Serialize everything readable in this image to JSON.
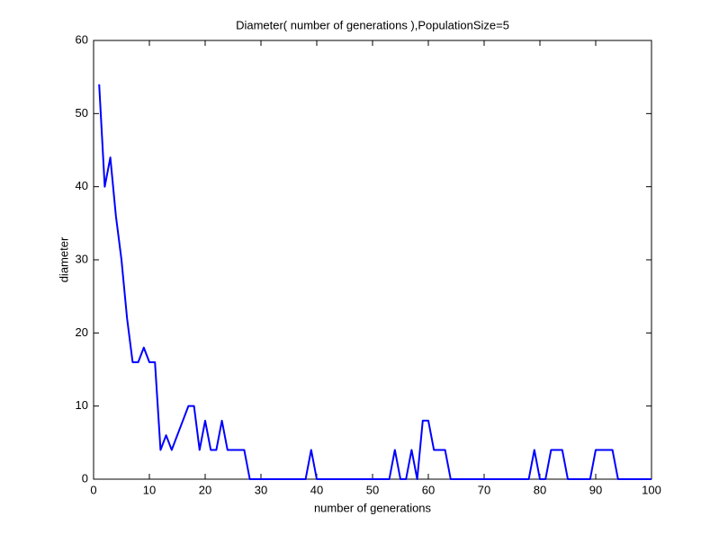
{
  "chart_data": {
    "type": "line",
    "title": "Diameter( number of generations ),PopulationSize=5",
    "xlabel": "number of generations",
    "ylabel": "diameter",
    "x": [
      1,
      2,
      3,
      4,
      5,
      6,
      7,
      8,
      9,
      10,
      11,
      12,
      13,
      14,
      15,
      16,
      17,
      18,
      19,
      20,
      21,
      22,
      23,
      24,
      25,
      26,
      27,
      28,
      29,
      30,
      31,
      32,
      33,
      34,
      35,
      36,
      37,
      38,
      39,
      40,
      41,
      42,
      43,
      44,
      45,
      46,
      47,
      48,
      49,
      50,
      51,
      52,
      53,
      54,
      55,
      56,
      57,
      58,
      59,
      60,
      61,
      62,
      63,
      64,
      65,
      66,
      67,
      68,
      69,
      70,
      71,
      72,
      73,
      74,
      75,
      76,
      77,
      78,
      79,
      80,
      81,
      82,
      83,
      84,
      85,
      86,
      87,
      88,
      89,
      90,
      91,
      92,
      93,
      94,
      95,
      96,
      97,
      98,
      99,
      100
    ],
    "series": [
      {
        "name": "diameter",
        "color": "#0000ff",
        "values": [
          54,
          40,
          44,
          36,
          30,
          22,
          16,
          16,
          18,
          16,
          16,
          4,
          6,
          4,
          6,
          8,
          10,
          10,
          4,
          8,
          4,
          4,
          8,
          4,
          4,
          4,
          4,
          0,
          0,
          0,
          0,
          0,
          0,
          0,
          0,
          0,
          0,
          0,
          4,
          0,
          0,
          0,
          0,
          0,
          0,
          0,
          0,
          0,
          0,
          0,
          0,
          0,
          0,
          4,
          0,
          0,
          4,
          0,
          8,
          8,
          4,
          4,
          4,
          0,
          0,
          0,
          0,
          0,
          0,
          0,
          0,
          0,
          0,
          0,
          0,
          0,
          0,
          0,
          4,
          0,
          0,
          4,
          4,
          4,
          0,
          0,
          0,
          0,
          0,
          4,
          4,
          4,
          4,
          0,
          0,
          0,
          0,
          0,
          0,
          0
        ]
      }
    ],
    "xlim": [
      0,
      100
    ],
    "xticks": [
      0,
      10,
      20,
      30,
      40,
      50,
      60,
      70,
      80,
      90,
      100
    ],
    "ylim": [
      0,
      60
    ],
    "yticks": [
      0,
      10,
      20,
      30,
      40,
      50,
      60
    ],
    "grid": false
  }
}
